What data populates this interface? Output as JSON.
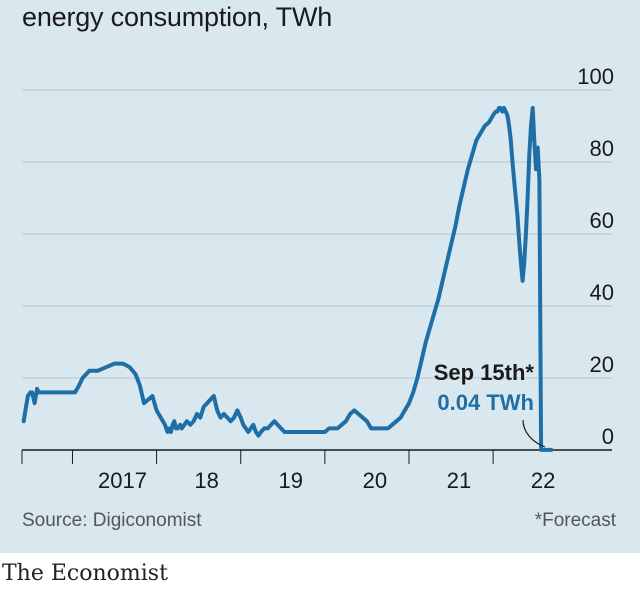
{
  "header": {
    "title": "energy consumption, TWh"
  },
  "footer": {
    "source": "Source: Digiconomist",
    "footnote": "*Forecast"
  },
  "brand": {
    "name": "The Economist"
  },
  "colors": {
    "line": "#1f6fa6",
    "panel": "#d9e8ef",
    "grid": "#b4c6cf",
    "annotation_value": "#1f6fa6"
  },
  "chart_data": {
    "type": "line",
    "title": "energy consumption, TWh",
    "xlabel": "",
    "ylabel": "",
    "ylim": [
      0,
      100
    ],
    "xlim": [
      2016.4,
      2022.7
    ],
    "y_ticks": [
      0,
      20,
      40,
      60,
      80,
      100
    ],
    "x_ticks": [
      {
        "value": 2017.0,
        "label": "2017"
      },
      {
        "value": 2018.0,
        "label": "18"
      },
      {
        "value": 2019.0,
        "label": "19"
      },
      {
        "value": 2020.0,
        "label": "20"
      },
      {
        "value": 2021.0,
        "label": "21"
      },
      {
        "value": 2022.0,
        "label": "22"
      }
    ],
    "grid": true,
    "y_axis_side": "right",
    "series": [
      {
        "x": [
          2016.42,
          2016.44,
          2016.47,
          2016.5,
          2016.52,
          2016.55,
          2016.58,
          2016.6,
          2016.62,
          2016.65,
          2016.7,
          2016.8,
          2016.9,
          2017.0,
          2017.03,
          2017.08,
          2017.12,
          2017.2,
          2017.3,
          2017.4,
          2017.5,
          2017.6,
          2017.68,
          2017.75,
          2017.8,
          2017.85,
          2017.9,
          2017.95,
          2018.0,
          2018.05,
          2018.1,
          2018.13,
          2018.15,
          2018.17,
          2018.19,
          2018.21,
          2018.23,
          2018.25,
          2018.28,
          2018.3,
          2018.33,
          2018.36,
          2018.4,
          2018.44,
          2018.48,
          2018.52,
          2018.56,
          2018.6,
          2018.64,
          2018.68,
          2018.72,
          2018.76,
          2018.8,
          2018.84,
          2018.88,
          2018.92,
          2018.96,
          2019.0,
          2019.03,
          2019.06,
          2019.09,
          2019.12,
          2019.15,
          2019.18,
          2019.21,
          2019.24,
          2019.28,
          2019.32,
          2019.36,
          2019.4,
          2019.44,
          2019.48,
          2019.52,
          2019.56,
          2019.6,
          2019.64,
          2019.68,
          2019.72,
          2019.76,
          2019.8,
          2019.84,
          2019.88,
          2019.92,
          2019.96,
          2020.0,
          2020.05,
          2020.1,
          2020.15,
          2020.2,
          2020.25,
          2020.3,
          2020.35,
          2020.4,
          2020.45,
          2020.5,
          2020.55,
          2020.6,
          2020.65,
          2020.7,
          2020.75,
          2020.8,
          2020.85,
          2020.9,
          2020.95,
          2021.0,
          2021.05,
          2021.1,
          2021.15,
          2021.2,
          2021.25,
          2021.3,
          2021.35,
          2021.4,
          2021.45,
          2021.5,
          2021.55,
          2021.6,
          2021.65,
          2021.7,
          2021.75,
          2021.8,
          2021.85,
          2021.9,
          2021.95,
          2022.0,
          2022.03,
          2022.05,
          2022.07,
          2022.09,
          2022.11,
          2022.13,
          2022.15,
          2022.17,
          2022.19,
          2022.21,
          2022.23,
          2022.25,
          2022.27,
          2022.29,
          2022.31,
          2022.33,
          2022.35,
          2022.37,
          2022.39,
          2022.41,
          2022.43,
          2022.45,
          2022.47,
          2022.49,
          2022.51,
          2022.53,
          2022.55,
          2022.57,
          2022.59,
          2022.61,
          2022.63,
          2022.65,
          2022.67,
          2022.69
        ],
        "y": [
          8,
          11,
          15,
          16,
          16,
          13,
          17,
          16,
          16,
          16,
          16,
          16,
          16,
          16,
          16,
          18,
          20,
          22,
          22,
          23,
          24,
          24,
          23,
          21,
          18,
          13,
          14,
          15,
          11,
          9,
          7,
          5,
          6,
          5,
          7,
          8,
          6,
          6,
          7,
          6,
          7,
          8,
          7,
          8,
          10,
          9,
          12,
          13,
          14,
          15,
          11,
          9,
          10,
          9,
          8,
          9,
          11,
          9,
          7,
          6,
          5,
          6,
          7,
          5,
          4,
          5,
          6,
          6,
          7,
          8,
          7,
          6,
          5,
          5,
          5,
          5,
          5,
          5,
          5,
          5,
          5,
          5,
          5,
          5,
          5,
          6,
          6,
          6,
          7,
          8,
          10,
          11,
          10,
          9,
          8,
          6,
          6,
          6,
          6,
          6,
          7,
          8,
          9,
          11,
          13,
          16,
          20,
          25,
          30,
          34,
          38,
          42,
          47,
          52,
          57,
          62,
          68,
          73,
          78,
          82,
          86,
          88,
          90,
          91,
          93,
          94,
          94,
          95,
          95,
          94,
          95,
          94,
          93,
          90,
          86,
          80,
          75,
          70,
          65,
          58,
          52,
          47,
          52,
          60,
          70,
          82,
          90,
          95,
          86,
          78,
          84,
          75,
          0.04,
          0.04,
          0.04,
          0.04,
          0.04,
          0.04,
          0.04
        ]
      }
    ],
    "annotations": [
      {
        "label": "Sep 15th*",
        "value_text": "0.04 TWh",
        "x": 2022.7,
        "y": 0.04
      }
    ]
  }
}
